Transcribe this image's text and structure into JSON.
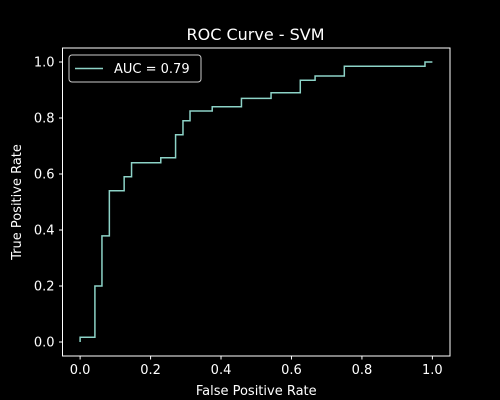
{
  "chart_data": {
    "type": "line",
    "title": "ROC Curve - SVM",
    "xlabel": "False Positive Rate",
    "ylabel": "True Positive Rate",
    "xlim": [
      -0.05,
      1.05
    ],
    "ylim": [
      -0.05,
      1.05
    ],
    "xticks": [
      0.0,
      0.2,
      0.4,
      0.6,
      0.8,
      1.0
    ],
    "xtick_labels": [
      "0.0",
      "0.2",
      "0.4",
      "0.6",
      "0.8",
      "1.0"
    ],
    "yticks": [
      0.0,
      0.2,
      0.4,
      0.6,
      0.8,
      1.0
    ],
    "ytick_labels": [
      "0.0",
      "0.2",
      "0.4",
      "0.6",
      "0.8",
      "1.0"
    ],
    "grid": false,
    "legend_position": "upper-left",
    "background": "#000000",
    "foreground": "#ffffff",
    "series": [
      {
        "name": "AUC = 0.79",
        "color": "#8dd3c7",
        "x": [
          0.0,
          0.0,
          0.0,
          0.042,
          0.042,
          0.042,
          0.062,
          0.062,
          0.083,
          0.083,
          0.125,
          0.125,
          0.146,
          0.146,
          0.229,
          0.229,
          0.271,
          0.271,
          0.292,
          0.292,
          0.312,
          0.312,
          0.375,
          0.375,
          0.458,
          0.458,
          0.542,
          0.542,
          0.625,
          0.625,
          0.667,
          0.667,
          0.75,
          0.75,
          0.979,
          0.979,
          1.0
        ],
        "y": [
          0.0,
          0.017,
          0.017,
          0.017,
          0.035,
          0.2,
          0.2,
          0.379,
          0.379,
          0.54,
          0.54,
          0.59,
          0.59,
          0.64,
          0.64,
          0.658,
          0.658,
          0.74,
          0.74,
          0.79,
          0.79,
          0.825,
          0.825,
          0.84,
          0.84,
          0.87,
          0.87,
          0.89,
          0.89,
          0.935,
          0.935,
          0.95,
          0.95,
          0.985,
          0.985,
          1.0,
          1.0
        ]
      }
    ]
  }
}
